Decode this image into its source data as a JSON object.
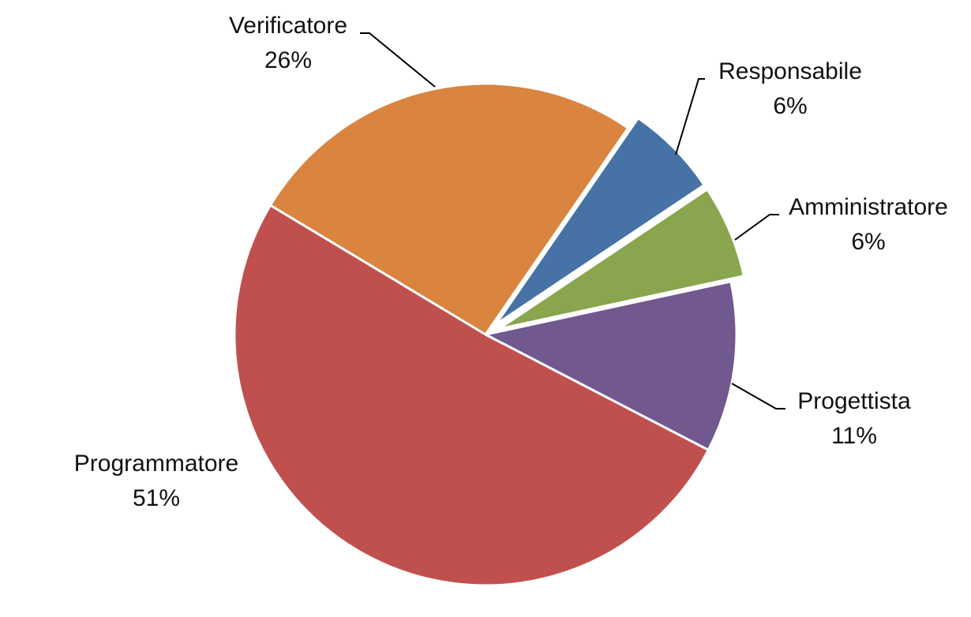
{
  "chart_data": {
    "type": "pie",
    "title": "",
    "start_angle_deg": 211,
    "direction": "clockwise",
    "exploded": [
      "Responsabile",
      "Amministratore"
    ],
    "slices": [
      {
        "name": "Verificatore",
        "label": "26%",
        "value": 26,
        "color": "#D9843F"
      },
      {
        "name": "Responsabile",
        "label": "6%",
        "value": 6,
        "color": "#4672A6"
      },
      {
        "name": "Amministratore",
        "label": "6%",
        "value": 6,
        "color": "#89A54E"
      },
      {
        "name": "Progettista",
        "label": "11%",
        "value": 11,
        "color": "#71588F"
      },
      {
        "name": "Programmatore",
        "label": "51%",
        "value": 51,
        "color": "#C0504E"
      }
    ]
  }
}
